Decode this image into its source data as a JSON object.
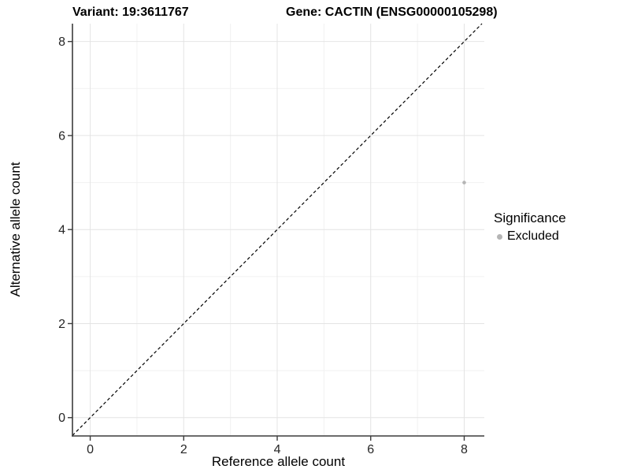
{
  "figure": {
    "background": "#ffffff"
  },
  "chart_data": {
    "type": "scatter",
    "titles": {
      "left": "Variant: 19:3611767",
      "right": "Gene: CACTIN (ENSG00000105298)"
    },
    "xlabel": "Reference allele count",
    "ylabel": "Alternative allele count",
    "xlim": [
      -0.38,
      8.43
    ],
    "ylim": [
      -0.39,
      8.38
    ],
    "xticks": [
      0,
      2,
      4,
      6,
      8
    ],
    "yticks": [
      0,
      2,
      4,
      6,
      8
    ],
    "xminor": [
      1,
      3,
      5,
      7
    ],
    "yminor": [
      1,
      3,
      5,
      7
    ],
    "grid": "major-and-minor",
    "identity_line": {
      "style": "dashed",
      "slope": 1,
      "intercept": 0,
      "color": "#000000"
    },
    "series": [
      {
        "name": "Excluded",
        "color": "#b5b5b5",
        "point_radius": 2.3,
        "points": [
          {
            "x": 8,
            "y": 5
          }
        ]
      }
    ],
    "legend": {
      "title": "Significance",
      "position": "right",
      "items": [
        {
          "label": "Excluded",
          "color": "#b5b5b5",
          "shape": "circle"
        }
      ]
    },
    "colors": {
      "grid_major": "#e4e4e4",
      "grid_minor": "#f1f1f1",
      "axis_line": "#3c3c3c",
      "tick_label": "#262626",
      "point": "#b5b5b5"
    }
  }
}
